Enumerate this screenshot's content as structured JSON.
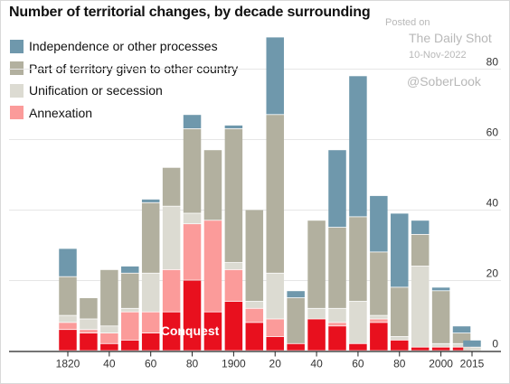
{
  "watermark": {
    "posted": "Posted on",
    "source": "The Daily Shot",
    "date": "10-Nov-2022",
    "handle": "@SoberLook"
  },
  "chart_data": {
    "type": "bar",
    "stacked": true,
    "title": "Number of territorial changes, by decade surrounding",
    "xlabel": "",
    "ylabel": "",
    "ylim": [
      0,
      100
    ],
    "yticks": [
      0,
      20,
      40,
      60,
      80
    ],
    "y_axis_side": "right",
    "grid": true,
    "legend_position": "top-left",
    "x": [
      1820,
      1830,
      1840,
      1850,
      1860,
      1870,
      1880,
      1890,
      1900,
      1910,
      1920,
      1930,
      1940,
      1950,
      1960,
      1970,
      1980,
      1990,
      2000,
      2010,
      2015
    ],
    "x_tick_labels": [
      "1820",
      "40",
      "60",
      "80",
      "1900",
      "20",
      "40",
      "60",
      "80",
      "2000",
      "2015"
    ],
    "x_tick_values": [
      1820,
      1840,
      1860,
      1880,
      1900,
      1920,
      1940,
      1960,
      1980,
      2000,
      2015
    ],
    "annotation": "Conquest",
    "series": [
      {
        "name": "",
        "color": "#e8101e",
        "values": [
          6,
          5,
          2,
          3,
          5,
          11,
          20,
          11,
          14,
          8,
          4,
          2,
          9,
          7,
          2,
          8,
          3,
          1,
          1,
          1,
          0
        ]
      },
      {
        "name": "Annexation",
        "color": "#fb9b9a",
        "values": [
          2,
          1,
          3,
          8,
          6,
          12,
          16,
          26,
          9,
          4,
          5,
          0,
          0,
          1,
          0,
          1,
          0,
          0,
          0,
          0,
          0
        ]
      },
      {
        "name": "Unification or secession",
        "color": "#dcdbd2",
        "values": [
          2,
          3,
          2,
          1,
          11,
          18,
          3,
          0,
          2,
          2,
          13,
          0,
          3,
          4,
          12,
          1,
          1,
          23,
          1,
          1,
          1
        ]
      },
      {
        "name": "Part of territory given to other country",
        "color": "#b2b09f",
        "values": [
          11,
          6,
          16,
          10,
          20,
          11,
          24,
          20,
          38,
          26,
          45,
          13,
          25,
          23,
          24,
          18,
          14,
          9,
          15,
          3,
          0
        ]
      },
      {
        "name": "Independence or other processes",
        "color": "#6f98ac",
        "values": [
          8,
          0,
          0,
          2,
          1,
          0,
          4,
          0,
          1,
          0,
          22,
          2,
          0,
          22,
          40,
          16,
          21,
          4,
          1,
          2,
          2
        ]
      }
    ]
  }
}
